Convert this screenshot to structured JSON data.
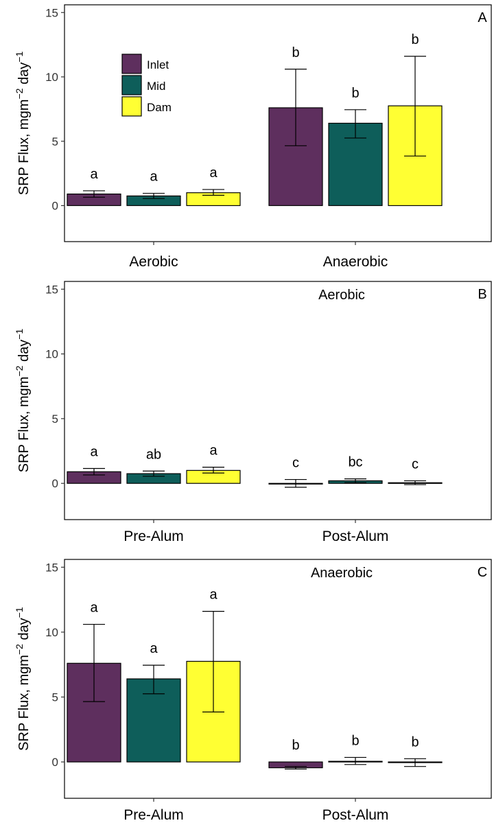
{
  "legend": {
    "entries": [
      {
        "name": "Inlet",
        "color": "#5e2f5e"
      },
      {
        "name": "Mid",
        "color": "#0e5e5a"
      },
      {
        "name": "Dam",
        "color": "#ffff33"
      }
    ],
    "position": "top-left"
  },
  "colors": {
    "Inlet": "#5e2f5e",
    "Mid": "#0e5e5a",
    "Dam": "#ffff33",
    "bar_outline": "#000000"
  },
  "chart_data": [
    {
      "type": "bar",
      "panel_label": "A",
      "title": "",
      "ylabel": "SRP Flux, mgm",
      "ylabel_sup1": "−2",
      "ylabel_mid": " day",
      "ylabel_sup2": "−1",
      "ylim": [
        -2.8,
        15.6
      ],
      "yticks": [
        "15",
        "10",
        "5",
        "0"
      ],
      "ytick_values": [
        15,
        10,
        5,
        0
      ],
      "categories": [
        "Aerobic",
        "Anaerobic"
      ],
      "series": [
        {
          "name": "Inlet",
          "values": [
            0.9,
            7.6
          ],
          "err_low": [
            0.65,
            4.65
          ],
          "err_high": [
            1.15,
            10.6
          ],
          "letters": [
            "a",
            "b"
          ]
        },
        {
          "name": "Mid",
          "values": [
            0.75,
            6.4
          ],
          "err_low": [
            0.55,
            5.25
          ],
          "err_high": [
            0.95,
            7.45
          ],
          "letters": [
            "a",
            "b"
          ]
        },
        {
          "name": "Dam",
          "values": [
            1.0,
            7.75
          ],
          "err_low": [
            0.8,
            3.85
          ],
          "err_high": [
            1.25,
            11.6
          ],
          "letters": [
            "a",
            "b"
          ]
        }
      ],
      "grid": false,
      "show_legend": true
    },
    {
      "type": "bar",
      "panel_label": "B",
      "title": "Aerobic",
      "ylabel": "SRP Flux, mgm",
      "ylabel_sup1": "−2",
      "ylabel_mid": " day",
      "ylabel_sup2": "−1",
      "ylim": [
        -2.8,
        15.6
      ],
      "yticks": [
        "15",
        "10",
        "5",
        "0"
      ],
      "ytick_values": [
        15,
        10,
        5,
        0
      ],
      "categories": [
        "Pre-Alum",
        "Post-Alum"
      ],
      "series": [
        {
          "name": "Inlet",
          "values": [
            0.9,
            0.0
          ],
          "err_low": [
            0.65,
            -0.3
          ],
          "err_high": [
            1.15,
            0.3
          ],
          "letters": [
            "a",
            "c"
          ]
        },
        {
          "name": "Mid",
          "values": [
            0.75,
            0.2
          ],
          "err_low": [
            0.55,
            0.05
          ],
          "err_high": [
            0.95,
            0.35
          ],
          "letters": [
            "ab",
            "bc"
          ]
        },
        {
          "name": "Dam",
          "values": [
            1.0,
            0.05
          ],
          "err_low": [
            0.8,
            -0.1
          ],
          "err_high": [
            1.25,
            0.2
          ],
          "letters": [
            "a",
            "c"
          ]
        }
      ],
      "grid": false,
      "show_legend": false
    },
    {
      "type": "bar",
      "panel_label": "C",
      "title": "Anaerobic",
      "ylabel": "SRP Flux, mgm",
      "ylabel_sup1": "−2",
      "ylabel_mid": " day",
      "ylabel_sup2": "−1",
      "ylim": [
        -2.8,
        15.6
      ],
      "yticks": [
        "15",
        "10",
        "5",
        "0"
      ],
      "ytick_values": [
        15,
        10,
        5,
        0
      ],
      "categories": [
        "Pre-Alum",
        "Post-Alum"
      ],
      "series": [
        {
          "name": "Inlet",
          "values": [
            7.6,
            -0.45
          ],
          "err_low": [
            4.65,
            -0.55
          ],
          "err_high": [
            10.6,
            -0.35
          ],
          "letters": [
            "a",
            "b"
          ]
        },
        {
          "name": "Mid",
          "values": [
            6.4,
            0.05
          ],
          "err_low": [
            5.25,
            -0.2
          ],
          "err_high": [
            7.45,
            0.35
          ],
          "letters": [
            "a",
            "b"
          ]
        },
        {
          "name": "Dam",
          "values": [
            7.75,
            -0.05
          ],
          "err_low": [
            3.85,
            -0.35
          ],
          "err_high": [
            11.6,
            0.25
          ],
          "letters": [
            "a",
            "b"
          ]
        }
      ],
      "grid": false,
      "show_legend": false
    }
  ]
}
